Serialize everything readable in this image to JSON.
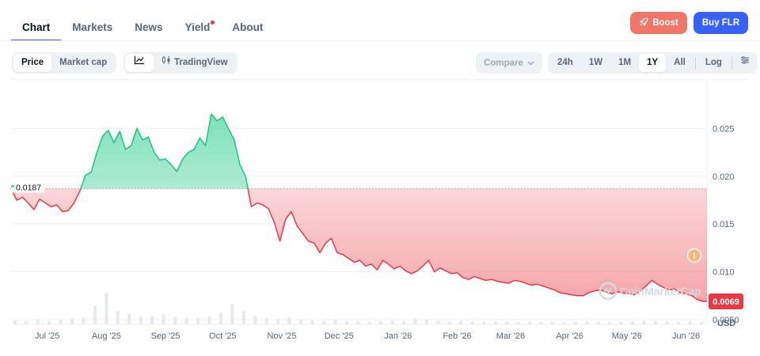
{
  "tabs": [
    {
      "label": "Chart",
      "active": true
    },
    {
      "label": "Markets"
    },
    {
      "label": "News"
    },
    {
      "label": "Yield",
      "dot": true
    },
    {
      "label": "About"
    }
  ],
  "actions": {
    "boost_label": "Boost",
    "buy_label": "Buy FLR"
  },
  "toolbar": {
    "metric": [
      "Price",
      "Market cap"
    ],
    "metric_selected": "Price",
    "tradingview_label": "TradingView",
    "compare_label": "Compare",
    "ranges": [
      "24h",
      "1W",
      "1M",
      "1Y",
      "All"
    ],
    "range_selected": "1Y",
    "log_label": "Log"
  },
  "colors": {
    "up": "#16c784",
    "down": "#ea3943",
    "accent": "#3861fb",
    "boost": "#f0766a"
  },
  "chart_data": {
    "type": "area",
    "currency_label": "USD",
    "baseline": 0.0187,
    "baseline_label": "0.0187",
    "current_price": 0.0069,
    "current_price_label": "0.0069",
    "watermark": "CoinMarketCap",
    "ylim": [
      0.0045,
      0.0295
    ],
    "y_ticks": [
      {
        "value": 0.025,
        "label": "0.025"
      },
      {
        "value": 0.02,
        "label": "0.020"
      },
      {
        "value": 0.015,
        "label": "0.015"
      },
      {
        "value": 0.01,
        "label": "0.010"
      },
      {
        "value": 0.005,
        "label": "0.0050"
      }
    ],
    "x_range": [
      "2025-06-12",
      "2026-06-12"
    ],
    "x_ticks": [
      {
        "date": "2025-07-01",
        "label": "Jul '25"
      },
      {
        "date": "2025-08-01",
        "label": "Aug '25"
      },
      {
        "date": "2025-09-01",
        "label": "Sep '25"
      },
      {
        "date": "2025-10-01",
        "label": "Oct '25"
      },
      {
        "date": "2025-11-01",
        "label": "Nov '25"
      },
      {
        "date": "2025-12-01",
        "label": "Dec '25"
      },
      {
        "date": "2026-01-01",
        "label": "Jan '26"
      },
      {
        "date": "2026-02-01",
        "label": "Feb '26"
      },
      {
        "date": "2026-03-01",
        "label": "Mar '26"
      },
      {
        "date": "2026-04-01",
        "label": "Apr '26"
      },
      {
        "date": "2026-05-01",
        "label": "May '26"
      },
      {
        "date": "2026-06-01",
        "label": "Jun '26"
      }
    ],
    "series": [
      {
        "x": [
          "2025-06-12",
          "2025-06-15",
          "2025-06-18",
          "2025-06-21",
          "2025-06-24",
          "2025-06-27",
          "2025-06-30",
          "2025-07-03",
          "2025-07-06",
          "2025-07-09",
          "2025-07-12",
          "2025-07-15",
          "2025-07-18",
          "2025-07-21",
          "2025-07-24",
          "2025-07-27",
          "2025-07-30",
          "2025-08-02",
          "2025-08-05",
          "2025-08-08",
          "2025-08-11",
          "2025-08-14",
          "2025-08-17",
          "2025-08-20",
          "2025-08-23",
          "2025-08-26",
          "2025-08-29",
          "2025-09-01",
          "2025-09-04",
          "2025-09-07",
          "2025-09-10",
          "2025-09-13",
          "2025-09-16",
          "2025-09-19",
          "2025-09-22",
          "2025-09-25",
          "2025-09-28",
          "2025-10-01",
          "2025-10-04",
          "2025-10-07",
          "2025-10-10",
          "2025-10-13",
          "2025-10-16",
          "2025-10-19",
          "2025-10-22",
          "2025-10-25",
          "2025-10-28",
          "2025-10-31",
          "2025-11-03",
          "2025-11-06",
          "2025-11-09",
          "2025-11-12",
          "2025-11-15",
          "2025-11-18",
          "2025-11-21",
          "2025-11-24",
          "2025-11-27",
          "2025-11-30",
          "2025-12-03",
          "2025-12-06",
          "2025-12-09",
          "2025-12-12",
          "2025-12-15",
          "2025-12-18",
          "2025-12-21",
          "2025-12-24",
          "2025-12-27",
          "2025-12-30",
          "2026-01-02",
          "2026-01-05",
          "2026-01-08",
          "2026-01-11",
          "2026-01-14",
          "2026-01-17",
          "2026-01-20",
          "2026-01-23",
          "2026-01-26",
          "2026-01-29",
          "2026-02-01",
          "2026-02-04",
          "2026-02-07",
          "2026-02-10",
          "2026-02-13",
          "2026-02-16",
          "2026-02-19",
          "2026-02-22",
          "2026-02-25",
          "2026-02-28",
          "2026-03-03",
          "2026-03-06",
          "2026-03-09",
          "2026-03-12",
          "2026-03-15",
          "2026-03-18",
          "2026-03-21",
          "2026-03-24",
          "2026-03-27",
          "2026-03-30",
          "2026-04-02",
          "2026-04-05",
          "2026-04-08",
          "2026-04-11",
          "2026-04-14",
          "2026-04-17",
          "2026-04-20",
          "2026-04-23",
          "2026-04-26",
          "2026-04-29",
          "2026-05-02",
          "2026-05-05",
          "2026-05-08",
          "2026-05-11",
          "2026-05-14",
          "2026-05-17",
          "2026-05-20",
          "2026-05-23",
          "2026-05-26",
          "2026-05-29",
          "2026-06-01",
          "2026-06-04",
          "2026-06-07",
          "2026-06-10",
          "2026-06-12"
        ],
        "y": [
          0.0187,
          0.0175,
          0.0178,
          0.0172,
          0.0165,
          0.0176,
          0.0172,
          0.0168,
          0.017,
          0.0163,
          0.0164,
          0.0172,
          0.0184,
          0.0201,
          0.0204,
          0.0225,
          0.0242,
          0.0248,
          0.0235,
          0.0247,
          0.0228,
          0.0232,
          0.025,
          0.0238,
          0.0241,
          0.0225,
          0.0217,
          0.0218,
          0.0212,
          0.0205,
          0.0218,
          0.0225,
          0.0228,
          0.024,
          0.0232,
          0.0265,
          0.0258,
          0.0262,
          0.025,
          0.0238,
          0.0212,
          0.02,
          0.0168,
          0.0172,
          0.017,
          0.0166,
          0.0152,
          0.0132,
          0.0155,
          0.0163,
          0.0148,
          0.014,
          0.0132,
          0.013,
          0.012,
          0.013,
          0.0135,
          0.012,
          0.0118,
          0.0114,
          0.011,
          0.0112,
          0.0106,
          0.0108,
          0.0102,
          0.0112,
          0.0108,
          0.0103,
          0.0106,
          0.0101,
          0.0098,
          0.0101,
          0.0106,
          0.0112,
          0.01,
          0.0104,
          0.0101,
          0.0098,
          0.0099,
          0.0094,
          0.0092,
          0.0095,
          0.0093,
          0.0091,
          0.0092,
          0.009,
          0.0089,
          0.0088,
          0.0091,
          0.009,
          0.0088,
          0.0086,
          0.0087,
          0.0085,
          0.0083,
          0.0081,
          0.0078,
          0.0077,
          0.0076,
          0.0075,
          0.0075,
          0.0078,
          0.008,
          0.0081,
          0.0079,
          0.0077,
          0.0079,
          0.0078,
          0.0077,
          0.0076,
          0.008,
          0.0085,
          0.0091,
          0.0087,
          0.0084,
          0.0081,
          0.0082,
          0.0078,
          0.0077,
          0.0075,
          0.0071,
          0.0069,
          0.0069
        ]
      }
    ],
    "volume": {
      "x": [
        "2025-06-14",
        "2025-06-20",
        "2025-06-26",
        "2025-07-02",
        "2025-07-08",
        "2025-07-14",
        "2025-07-20",
        "2025-07-26",
        "2025-08-01",
        "2025-08-07",
        "2025-08-13",
        "2025-08-19",
        "2025-08-25",
        "2025-08-31",
        "2025-09-06",
        "2025-09-12",
        "2025-09-18",
        "2025-09-24",
        "2025-09-30",
        "2025-10-06",
        "2025-10-12",
        "2025-10-18",
        "2025-10-24",
        "2025-10-30",
        "2025-11-05",
        "2025-11-11",
        "2025-11-17",
        "2025-11-23",
        "2025-11-29",
        "2025-12-05",
        "2025-12-11",
        "2025-12-17",
        "2025-12-23",
        "2025-12-29",
        "2026-01-04",
        "2026-01-10",
        "2026-01-16",
        "2026-01-22",
        "2026-01-28",
        "2026-02-03",
        "2026-02-09",
        "2026-02-15",
        "2026-02-21",
        "2026-02-27",
        "2026-03-05",
        "2026-03-11",
        "2026-03-17",
        "2026-03-23",
        "2026-03-29",
        "2026-04-04",
        "2026-04-10",
        "2026-04-16",
        "2026-04-22",
        "2026-04-28",
        "2026-05-04",
        "2026-05-10",
        "2026-05-16",
        "2026-05-22",
        "2026-05-28",
        "2026-06-03",
        "2026-06-09"
      ],
      "values": [
        0.12,
        0.1,
        0.14,
        0.1,
        0.13,
        0.18,
        0.2,
        0.55,
        0.95,
        0.4,
        0.3,
        0.22,
        0.25,
        0.3,
        0.22,
        0.18,
        0.2,
        0.25,
        0.35,
        0.6,
        0.4,
        0.25,
        0.18,
        0.15,
        0.22,
        0.15,
        0.12,
        0.1,
        0.14,
        0.1,
        0.09,
        0.08,
        0.1,
        0.12,
        0.1,
        0.18,
        0.14,
        0.1,
        0.09,
        0.1,
        0.08,
        0.08,
        0.09,
        0.08,
        0.07,
        0.08,
        0.07,
        0.07,
        0.06,
        0.07,
        0.08,
        0.07,
        0.06,
        0.07,
        0.1,
        0.12,
        0.09,
        0.08,
        0.07,
        0.1,
        0.08
      ]
    }
  }
}
